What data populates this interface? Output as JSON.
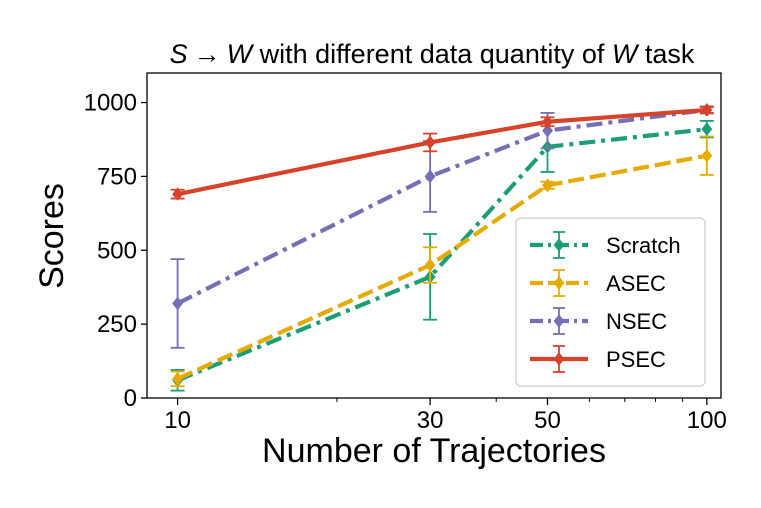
{
  "chart_data": {
    "type": "line",
    "title": "S → W with different data quantity of W task",
    "title_parts": {
      "source_task": "S",
      "arrow": "→",
      "target_task": "W",
      "middle": " with different data quantity of ",
      "task_var": "W",
      "suffix": " task"
    },
    "xlabel": "Number of Trajectories",
    "ylabel": "Scores",
    "xscale": "log",
    "x": [
      10,
      30,
      50,
      100
    ],
    "xticks": [
      10,
      30,
      50,
      100
    ],
    "xtick_labels": [
      "10",
      "30",
      "50",
      "100"
    ],
    "ylim": [
      0,
      1100
    ],
    "yticks": [
      0,
      250,
      500,
      750,
      1000
    ],
    "ytick_labels": [
      "0",
      "250",
      "500",
      "750",
      "1000"
    ],
    "grid": false,
    "legend_position": "center-right",
    "series": [
      {
        "name": "Scratch",
        "color": "#1b9e77",
        "linestyle": "dashdot",
        "marker": "diamond",
        "values": [
          60,
          410,
          850,
          910
        ],
        "errors": [
          35,
          145,
          85,
          28
        ]
      },
      {
        "name": "ASEC",
        "color": "#e6ab02",
        "linestyle": "dashed",
        "marker": "diamond",
        "values": [
          65,
          450,
          720,
          820
        ],
        "errors": [
          25,
          60,
          12,
          65
        ]
      },
      {
        "name": "NSEC",
        "color": "#7570b3",
        "linestyle": "dashdot",
        "marker": "diamond",
        "values": [
          320,
          750,
          905,
          975
        ],
        "errors": [
          150,
          120,
          60,
          12
        ]
      },
      {
        "name": "PSEC",
        "color": "#d7422a",
        "linestyle": "solid",
        "marker": "diamond",
        "values": [
          690,
          865,
          935,
          975
        ],
        "errors": [
          15,
          30,
          15,
          10
        ]
      }
    ]
  }
}
